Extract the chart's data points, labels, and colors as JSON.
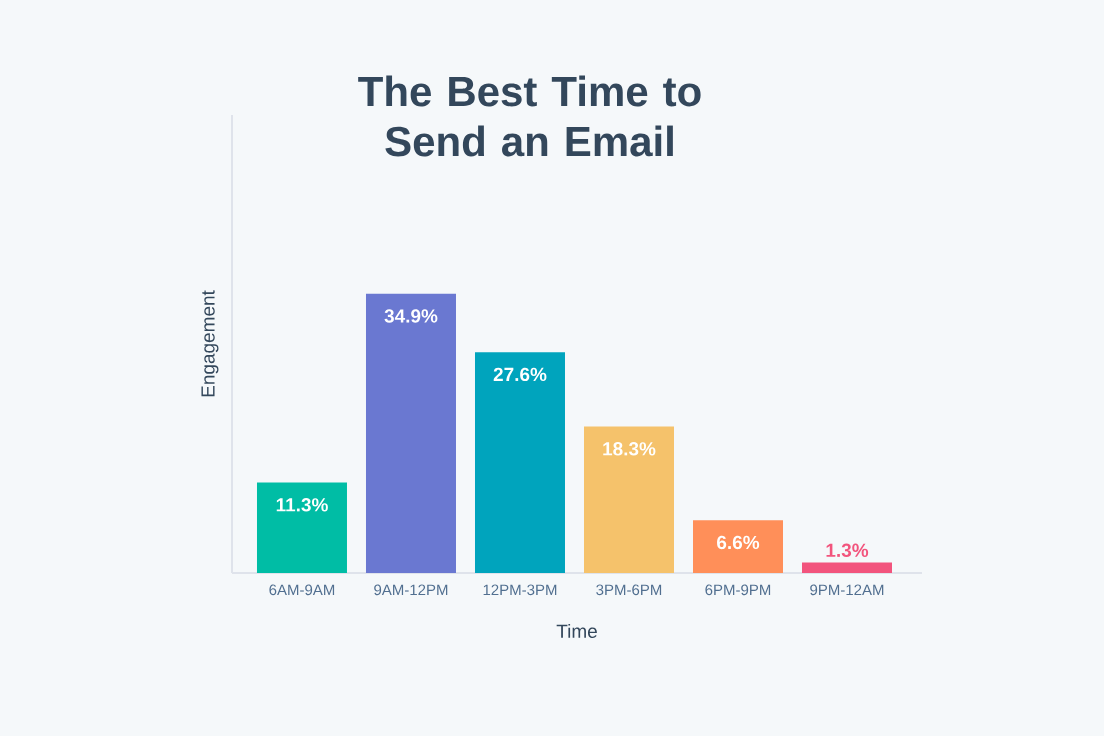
{
  "chart_data": {
    "type": "bar",
    "title": "The Best Time to Send an Email",
    "xlabel": "Time",
    "ylabel": "Engagement",
    "categories": [
      "6AM-9AM",
      "9AM-12PM",
      "12PM-3PM",
      "3PM-6PM",
      "6PM-9PM",
      "9PM-12AM"
    ],
    "values": [
      11.3,
      34.9,
      27.6,
      18.3,
      6.6,
      1.3
    ],
    "value_labels": [
      "11.3%",
      "34.9%",
      "27.6%",
      "18.3%",
      "6.6%",
      "1.3%"
    ],
    "colors": [
      "#00bda5",
      "#6a78d1",
      "#00a4bd",
      "#f5c26b",
      "#ff8f59",
      "#f2547d"
    ]
  }
}
